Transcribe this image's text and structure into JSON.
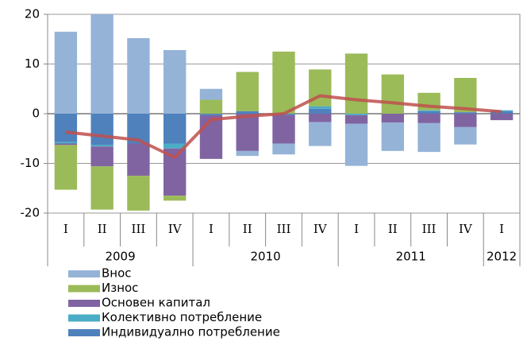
{
  "chart_data": {
    "type": "stacked_bar_line",
    "groups": [
      {
        "label": "2009",
        "categories": [
          "I",
          "II",
          "III",
          "IV"
        ]
      },
      {
        "label": "2010",
        "categories": [
          "I",
          "II",
          "III",
          "IV"
        ]
      },
      {
        "label": "2011",
        "categories": [
          "I",
          "II",
          "III",
          "IV"
        ]
      },
      {
        "label": "2012",
        "categories": [
          "I"
        ]
      }
    ],
    "series": [
      {
        "name": "Внос",
        "color": "#95b3d7",
        "values": [
          16.5,
          20,
          15.2,
          12.8,
          2.2,
          -1,
          -2.2,
          -4.8,
          -8.5,
          -5.7,
          -5.8,
          -3.5,
          0
        ]
      },
      {
        "name": "Износ",
        "color": "#9bbb59",
        "values": [
          -9,
          -8.7,
          -7,
          -1,
          2.8,
          7.9,
          12.5,
          7.4,
          12.1,
          7.9,
          3.5,
          6.9,
          0
        ]
      },
      {
        "name": "Основен капитал",
        "color": "#8064a2",
        "values": [
          -0.3,
          -4,
          -6.5,
          -9.5,
          -8.8,
          -7.5,
          -5.7,
          -1.7,
          -1.7,
          -1.8,
          -1.9,
          -2.7,
          -1.3
        ]
      },
      {
        "name": "Колективно потребление",
        "color": "#4bacc6",
        "values": [
          -0.3,
          -0.3,
          0,
          -1,
          0,
          0,
          0,
          0.5,
          -0.3,
          0,
          0.2,
          0,
          0.2
        ]
      },
      {
        "name": "Индивидуално потребление",
        "color": "#4f81bd",
        "values": [
          -5.7,
          -6.3,
          -6,
          -6,
          -0.3,
          0.5,
          -0.3,
          1,
          0,
          0,
          0.5,
          0.3,
          0.5
        ]
      },
      {
        "type": "line",
        "color": "#c0504d",
        "values": [
          -3.7,
          -4.5,
          -5.3,
          -8.8,
          -1.2,
          -0.5,
          0,
          3.6,
          2.8,
          2.2,
          1.5,
          1,
          0.4
        ]
      }
    ],
    "ylim": [
      -20,
      20
    ],
    "yticks": [
      -20,
      -10,
      0,
      10,
      20
    ],
    "grid": true
  }
}
